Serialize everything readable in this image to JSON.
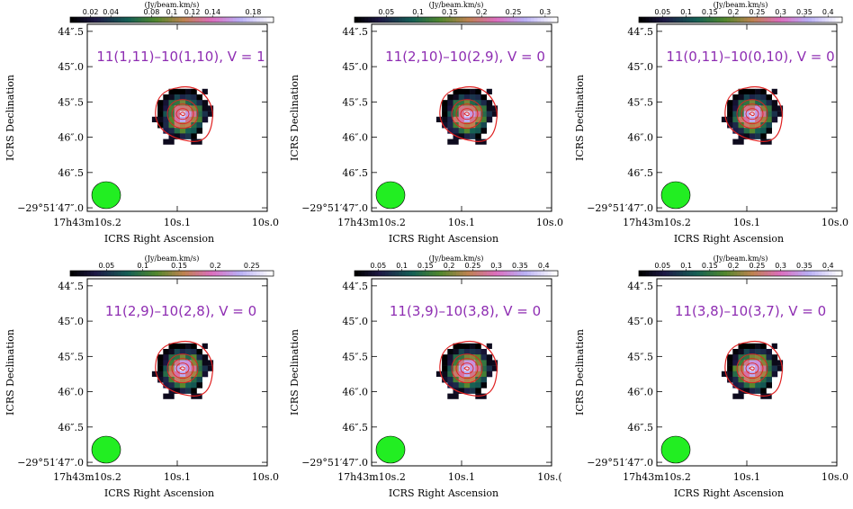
{
  "colors": {
    "title": "#8e2db2",
    "contour": "#e02020",
    "beam": "#22ee22",
    "background": "#ffffff"
  },
  "chart_data": [
    {
      "type": "heatmap",
      "title": "11(1,11)–10(1,10), V = 1",
      "colorbar": {
        "unit": "(Jy/beam.km/s)",
        "ticks": [
          "0.02",
          "0.04",
          "0.08",
          "0.1",
          "0.12",
          "0.14",
          "0.18"
        ],
        "range": [
          0.0,
          0.2
        ]
      },
      "xlabel": "ICRS Right Ascension",
      "ylabel": "ICRS Declination",
      "xticks": [
        "17h43m10s.2",
        "10s.1",
        "10s.0"
      ],
      "yticks": [
        "44″.5",
        "45″.0",
        "45″.5",
        "46″.0",
        "46″.5",
        "−29°51′47″.0"
      ],
      "peak": {
        "x": 10.094,
        "y": 45.67
      }
    },
    {
      "type": "heatmap",
      "title": "11(2,10)–10(2,9), V = 0",
      "colorbar": {
        "unit": "(Jy/beam.km/s)",
        "ticks": [
          "0.05",
          "0.1",
          "0.15",
          "0.2",
          "0.25",
          "0.3"
        ],
        "range": [
          0.0,
          0.32
        ]
      },
      "xlabel": "ICRS Right Ascension",
      "ylabel": "ICRS Declination",
      "xticks": [
        "17h43m10s.2",
        "10s.1",
        "10s.0"
      ],
      "yticks": [
        "44″.5",
        "45″.0",
        "45″.5",
        "46″.0",
        "46″.5",
        "−29°51′47″.0"
      ],
      "peak": {
        "x": 10.094,
        "y": 45.67
      }
    },
    {
      "type": "heatmap",
      "title": "11(0,11)–10(0,10), V = 0",
      "colorbar": {
        "unit": "(Jy/beam.km/s)",
        "ticks": [
          "0.05",
          "0.1",
          "0.15",
          "0.2",
          "0.25",
          "0.3",
          "0.35",
          "0.4"
        ],
        "range": [
          0.0,
          0.43
        ]
      },
      "xlabel": "ICRS Right Ascension",
      "ylabel": "ICRS Declination",
      "xticks": [
        "17h43m10s.2",
        "10s.1",
        "10s.0"
      ],
      "yticks": [
        "44″.5",
        "45″.0",
        "45″.5",
        "46″.0",
        "46″.5",
        "−29°51′47″.0"
      ],
      "peak": {
        "x": 10.094,
        "y": 45.67
      }
    },
    {
      "type": "heatmap",
      "title": "11(2,9)–10(2,8), V = 0",
      "colorbar": {
        "unit": "(Jy/beam.km/s)",
        "ticks": [
          "0.05",
          "0.1",
          "0.15",
          "0.2",
          "0.25"
        ],
        "range": [
          0.0,
          0.28
        ]
      },
      "xlabel": "ICRS Right Ascension",
      "ylabel": "ICRS Declination",
      "xticks": [
        "17h43m10s.2",
        "10s.1",
        "10s.0"
      ],
      "yticks": [
        "44″.5",
        "45″.0",
        "45″.5",
        "46″.0",
        "46″.5",
        "−29°51′47″.0"
      ],
      "peak": {
        "x": 10.094,
        "y": 45.67
      }
    },
    {
      "type": "heatmap",
      "title": "11(3,9)–10(3,8), V = 0",
      "colorbar": {
        "unit": "(Jy/beam.km/s)",
        "ticks": [
          "0.05",
          "0.1",
          "0.15",
          "0.2",
          "0.25",
          "0.3",
          "0.35",
          "0.4"
        ],
        "range": [
          0.0,
          0.43
        ]
      },
      "xlabel": "ICRS Right Ascension",
      "ylabel": "ICRS Declination",
      "xticks": [
        "17h43m10s.2",
        "10s.1",
        "10s.("
      ],
      "yticks": [
        "44″.5",
        "45″.0",
        "45″.5",
        "46″.0",
        "46″.5",
        "−29°51′47″.0"
      ],
      "peak": {
        "x": 10.094,
        "y": 45.67
      }
    },
    {
      "type": "heatmap",
      "title": "11(3,8)–10(3,7), V = 0",
      "colorbar": {
        "unit": "(Jy/beam.km/s)",
        "ticks": [
          "0.05",
          "0.1",
          "0.15",
          "0.2",
          "0.25",
          "0.3",
          "0.35",
          "0.4"
        ],
        "range": [
          0.0,
          0.43
        ]
      },
      "xlabel": "ICRS Right Ascension",
      "ylabel": "ICRS Declination",
      "xticks": [
        "17h43m10s.2",
        "10s.1",
        "10s.0"
      ],
      "yticks": [
        "44″.5",
        "45″.0",
        "45″.5",
        "46″.0",
        "46″.5",
        "−29°51′47″.0"
      ],
      "peak": {
        "x": 10.094,
        "y": 45.67
      }
    }
  ]
}
